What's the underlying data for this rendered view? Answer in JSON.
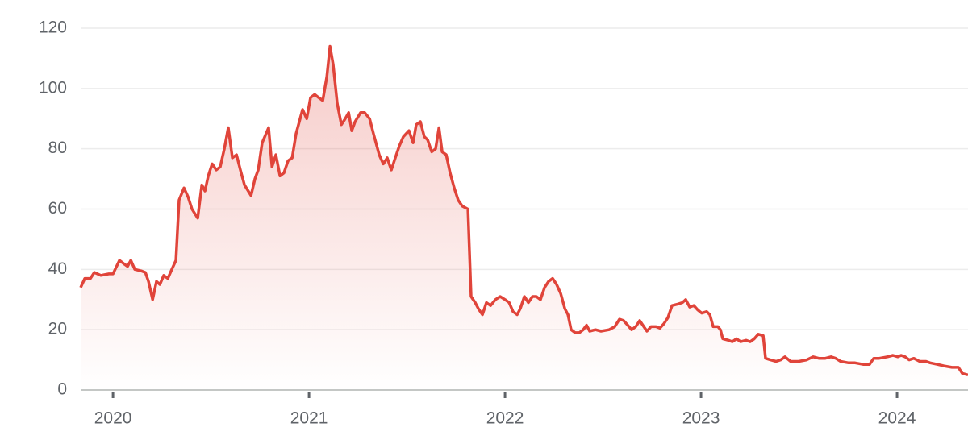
{
  "chart_data": {
    "type": "line",
    "color": "#e0443a",
    "grid": true,
    "xlim": [
      2019.835,
      2024.362
    ],
    "xticks": [
      2020,
      2021,
      2022,
      2023,
      2024
    ],
    "ylim": [
      0,
      120
    ],
    "yticks": [
      0,
      20,
      40,
      60,
      80,
      100,
      120
    ],
    "x": [
      2019.835,
      2019.856,
      2019.885,
      2019.905,
      2019.938,
      2019.979,
      2020.0,
      2020.033,
      2020.053,
      2020.074,
      2020.091,
      2020.111,
      2020.144,
      2020.165,
      2020.181,
      2020.202,
      2020.222,
      2020.239,
      2020.259,
      2020.28,
      2020.3,
      2020.321,
      2020.337,
      2020.362,
      2020.383,
      2020.403,
      2020.432,
      2020.453,
      2020.469,
      2020.486,
      2020.506,
      2020.527,
      2020.547,
      2020.568,
      2020.588,
      2020.609,
      2020.63,
      2020.65,
      2020.671,
      2020.704,
      2020.724,
      2020.741,
      2020.761,
      2020.794,
      2020.811,
      2020.831,
      2020.852,
      2020.872,
      2020.893,
      2020.914,
      2020.934,
      2020.967,
      2020.988,
      2021.008,
      2021.029,
      2021.049,
      2021.07,
      2021.091,
      2021.107,
      2021.123,
      2021.144,
      2021.165,
      2021.185,
      2021.202,
      2021.218,
      2021.235,
      2021.263,
      2021.284,
      2021.309,
      2021.329,
      2021.358,
      2021.379,
      2021.399,
      2021.42,
      2021.44,
      2021.461,
      2021.481,
      2021.51,
      2021.531,
      2021.547,
      2021.568,
      2021.588,
      2021.605,
      2021.626,
      2021.646,
      2021.663,
      2021.679,
      2021.7,
      2021.72,
      2021.741,
      2021.761,
      2021.782,
      2021.811,
      2021.827,
      2021.848,
      2021.864,
      2021.885,
      2021.905,
      2021.926,
      2021.951,
      2021.975,
      2022.0,
      2022.021,
      2022.041,
      2022.062,
      2022.078,
      2022.099,
      2022.119,
      2022.14,
      2022.16,
      2022.181,
      2022.202,
      2022.222,
      2022.243,
      2022.263,
      2022.284,
      2022.305,
      2022.321,
      2022.337,
      2022.358,
      2022.379,
      2022.399,
      2022.416,
      2022.432,
      2022.461,
      2022.49,
      2022.531,
      2022.56,
      2022.584,
      2022.605,
      2022.626,
      2022.646,
      2022.667,
      2022.687,
      2022.708,
      2022.724,
      2022.745,
      2022.77,
      2022.79,
      2022.811,
      2022.831,
      2022.852,
      2022.881,
      2022.905,
      2022.922,
      2022.942,
      2022.963,
      2022.984,
      2023.004,
      2023.029,
      2023.045,
      2023.062,
      2023.086,
      2023.099,
      2023.111,
      2023.14,
      2023.16,
      2023.181,
      2023.202,
      2023.23,
      2023.251,
      2023.272,
      2023.292,
      2023.317,
      2023.329,
      2023.354,
      2023.383,
      2023.407,
      2023.428,
      2023.457,
      2023.498,
      2023.539,
      2023.572,
      2023.601,
      2023.634,
      2023.663,
      2023.687,
      2023.712,
      2023.753,
      2023.786,
      2023.827,
      2023.86,
      2023.881,
      2023.909,
      2023.951,
      2023.979,
      2024.004,
      2024.021,
      2024.041,
      2024.062,
      2024.086,
      2024.115,
      2024.148,
      2024.169,
      2024.206,
      2024.239,
      2024.28,
      2024.313,
      2024.333,
      2024.362
    ],
    "values": [
      34,
      37,
      37,
      39,
      38,
      38.5,
      38.5,
      43,
      42,
      41,
      43,
      40,
      39.5,
      39,
      36,
      30,
      36,
      35,
      38,
      37,
      40,
      43,
      63,
      67,
      64,
      60,
      57,
      68,
      66,
      71,
      75,
      73,
      74,
      80,
      87,
      77,
      78,
      73,
      68,
      64.5,
      70,
      73,
      82,
      87,
      74,
      78,
      71,
      72,
      76,
      77,
      85,
      93,
      90,
      97,
      98,
      97,
      96,
      104,
      114,
      108,
      95,
      88,
      90,
      92,
      86,
      89,
      92,
      92,
      90,
      85,
      78,
      75,
      77,
      73,
      77,
      81,
      84,
      86,
      82,
      88,
      89,
      84,
      83,
      79,
      80,
      87,
      79,
      78,
      72,
      67,
      63,
      61,
      60,
      31,
      29,
      27,
      25,
      29,
      28,
      30,
      31,
      30,
      29,
      26,
      25,
      27,
      31,
      29,
      31,
      31,
      30,
      34,
      36,
      37,
      35,
      32,
      27,
      25,
      20,
      19,
      19,
      20,
      21.5,
      19.5,
      20,
      19.5,
      20,
      21,
      23.5,
      23,
      21.5,
      20,
      21,
      23,
      21,
      19.5,
      21,
      21,
      20.5,
      22,
      24,
      28,
      28.5,
      29,
      30,
      27.5,
      28,
      26.5,
      25.5,
      26,
      25,
      21,
      21,
      20,
      17,
      16.5,
      16,
      17,
      16,
      16.5,
      16,
      17,
      18.5,
      18,
      10.5,
      10,
      9.5,
      10,
      11,
      9.5,
      9.5,
      10,
      11,
      10.5,
      10.5,
      11,
      10.5,
      9.5,
      9,
      9,
      8.5,
      8.5,
      10.5,
      10.5,
      11,
      11.5,
      11,
      11.5,
      11,
      10,
      10.5,
      9.5,
      9.5,
      9,
      8.5,
      8,
      7.5,
      7.5,
      5.5,
      5
    ]
  }
}
